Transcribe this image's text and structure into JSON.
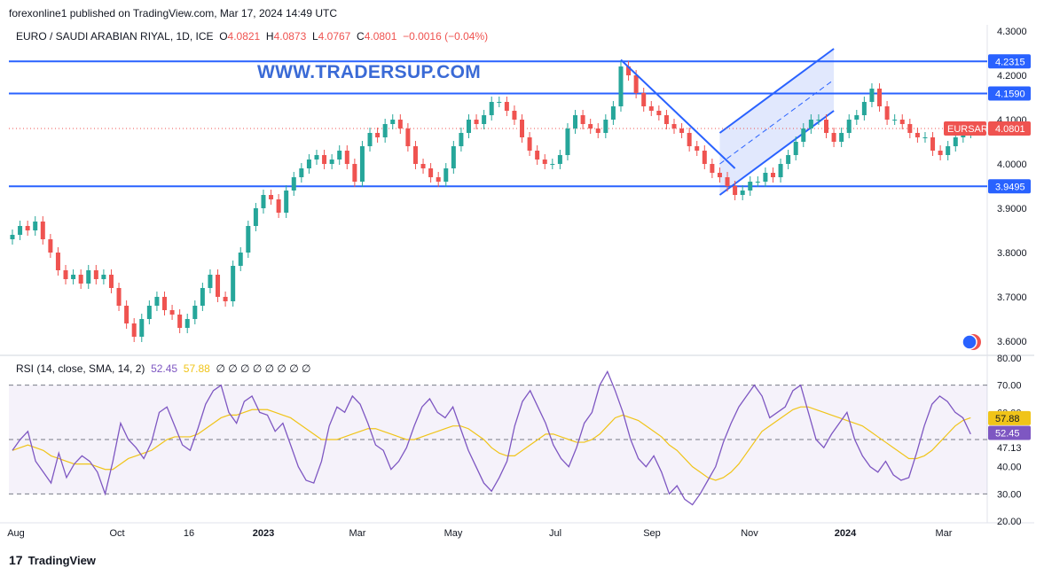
{
  "header": {
    "published": "forexonline1 published on TradingView.com, Mar 17, 2024 14:49 UTC"
  },
  "legend": {
    "symbol": "EURO / SAUDI ARABIAN RIYAL, 1D, ICE",
    "o_label": "O",
    "o_value": "4.0821",
    "h_label": "H",
    "h_value": "4.0873",
    "l_label": "L",
    "l_value": "4.0767",
    "c_label": "C",
    "c_value": "4.0801",
    "change": "−0.0016 (−0.04%)"
  },
  "watermark": "WWW.TRADERSUP.COM",
  "rsi_legend": {
    "label": "RSI (14, close, SMA, 14, 2)",
    "rsi_value": "52.45",
    "sma_value": "57.88",
    "placeholders": "∅ ∅ ∅ ∅ ∅ ∅ ∅ ∅"
  },
  "footer": {
    "brand": "TradingView",
    "logo": "17"
  },
  "colors": {
    "up": "#26a69a",
    "down": "#ef5350",
    "line": "#2962ff",
    "rsi": "#7e57c2",
    "rsi_ma": "#f0c419",
    "channel": "#c8d5fb"
  },
  "chart_data": [
    {
      "type": "candlestick",
      "title": "EURO / SAUDI ARABIAN RIYAL, 1D, ICE",
      "symbol_tag": "EURSAR",
      "last_price": "4.0801",
      "y_ticks": [
        "4.3000",
        "4.2000",
        "4.1000",
        "4.0000",
        "3.9000",
        "3.8000",
        "3.7000",
        "3.6000"
      ],
      "ylim": [
        3.57,
        4.31
      ],
      "x_ticks": [
        "Aug",
        "Oct",
        "16",
        "2023",
        "Mar",
        "May",
        "Jul",
        "Sep",
        "Nov",
        "2024",
        "Mar"
      ],
      "horizontal_levels": [
        {
          "value": 4.2315,
          "label": "4.2315"
        },
        {
          "value": 4.159,
          "label": "4.1590"
        },
        {
          "value": 3.9495,
          "label": "3.9495"
        }
      ],
      "closes": [
        3.84,
        3.86,
        3.85,
        3.87,
        3.83,
        3.8,
        3.76,
        3.74,
        3.75,
        3.73,
        3.76,
        3.74,
        3.75,
        3.72,
        3.68,
        3.64,
        3.61,
        3.65,
        3.68,
        3.7,
        3.67,
        3.66,
        3.63,
        3.65,
        3.68,
        3.72,
        3.75,
        3.7,
        3.69,
        3.77,
        3.8,
        3.86,
        3.9,
        3.93,
        3.92,
        3.89,
        3.94,
        3.97,
        3.99,
        4.01,
        4.02,
        4.0,
        4.01,
        4.03,
        4.0,
        3.96,
        4.04,
        4.07,
        4.06,
        4.09,
        4.1,
        4.08,
        4.04,
        4.0,
        3.99,
        3.97,
        3.96,
        3.99,
        4.04,
        4.07,
        4.1,
        4.09,
        4.11,
        4.14,
        4.14,
        4.12,
        4.1,
        4.06,
        4.03,
        4.01,
        4.0,
        4.0,
        4.02,
        4.08,
        4.11,
        4.09,
        4.08,
        4.07,
        4.1,
        4.13,
        4.22,
        4.2,
        4.16,
        4.13,
        4.12,
        4.11,
        4.09,
        4.08,
        4.07,
        4.04,
        4.03,
        4.0,
        3.98,
        3.97,
        3.95,
        3.93,
        3.94,
        3.96,
        3.96,
        3.98,
        3.97,
        4.0,
        4.02,
        4.05,
        4.08,
        4.1,
        4.1,
        4.07,
        4.05,
        4.07,
        4.1,
        4.11,
        4.14,
        4.17,
        4.13,
        4.1,
        4.1,
        4.09,
        4.07,
        4.06,
        4.06,
        4.03,
        4.02,
        4.04,
        4.06,
        4.07,
        4.08
      ]
    },
    {
      "type": "line",
      "title": "RSI (14, close, SMA, 14, 2)",
      "y_ticks": [
        "80.00",
        "70.00",
        "60.00",
        "47.13",
        "40.00",
        "30.00",
        "20.00"
      ],
      "ylim": [
        20,
        80
      ],
      "bands": [
        70,
        50,
        30
      ],
      "series": [
        {
          "name": "RSI",
          "current": "52.45",
          "values": [
            46,
            50,
            53,
            42,
            38,
            34,
            45,
            36,
            41,
            44,
            42,
            38,
            30,
            42,
            56,
            50,
            47,
            43,
            49,
            60,
            62,
            55,
            48,
            46,
            54,
            63,
            68,
            70,
            60,
            56,
            64,
            66,
            60,
            59,
            53,
            56,
            48,
            40,
            35,
            34,
            42,
            55,
            62,
            60,
            66,
            63,
            56,
            48,
            46,
            39,
            42,
            47,
            55,
            62,
            65,
            60,
            58,
            62,
            54,
            46,
            40,
            34,
            31,
            36,
            42,
            55,
            64,
            68,
            62,
            56,
            48,
            43,
            40,
            47,
            56,
            60,
            70,
            75,
            68,
            60,
            50,
            43,
            40,
            44,
            38,
            30,
            33,
            28,
            26,
            30,
            35,
            40,
            49,
            56,
            62,
            66,
            70,
            66,
            58,
            60,
            62,
            68,
            70,
            60,
            50,
            47,
            52,
            56,
            60,
            50,
            44,
            40,
            38,
            42,
            37,
            35,
            36,
            45,
            55,
            63,
            66,
            64,
            60,
            58,
            52
          ]
        },
        {
          "name": "SMA",
          "current": "57.88",
          "values": [
            46,
            47,
            48,
            47,
            46,
            44,
            43,
            42,
            41,
            41,
            41,
            40,
            39,
            39,
            41,
            43,
            44,
            45,
            46,
            48,
            50,
            51,
            51,
            51,
            52,
            54,
            56,
            58,
            59,
            59,
            60,
            61,
            61,
            61,
            60,
            59,
            58,
            56,
            54,
            52,
            50,
            50,
            50,
            51,
            52,
            53,
            54,
            54,
            53,
            52,
            51,
            50,
            50,
            51,
            52,
            53,
            54,
            55,
            55,
            54,
            52,
            50,
            47,
            45,
            44,
            44,
            46,
            48,
            50,
            52,
            52,
            51,
            50,
            49,
            49,
            50,
            52,
            55,
            58,
            59,
            58,
            57,
            55,
            53,
            51,
            48,
            46,
            43,
            40,
            38,
            36,
            35,
            36,
            38,
            41,
            45,
            49,
            53,
            55,
            57,
            59,
            61,
            62,
            62,
            61,
            60,
            59,
            58,
            57,
            56,
            55,
            53,
            51,
            49,
            47,
            45,
            43,
            43,
            44,
            46,
            49,
            52,
            55,
            57,
            58
          ]
        }
      ]
    }
  ]
}
